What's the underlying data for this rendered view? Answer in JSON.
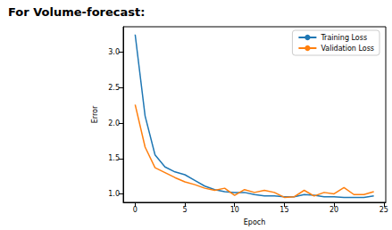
{
  "chart_data": {
    "type": "line",
    "title": "For Volume-forecast:",
    "x_label": "Epoch",
    "y_label": "Error",
    "x": [
      0,
      1,
      2,
      3,
      4,
      5,
      6,
      7,
      8,
      9,
      10,
      11,
      12,
      13,
      14,
      15,
      16,
      17,
      18,
      19,
      20,
      21,
      22,
      23,
      24
    ],
    "series": [
      {
        "name": "Training Loss",
        "color": "#1f77b4",
        "values": [
          3.25,
          2.1,
          1.55,
          1.38,
          1.31,
          1.27,
          1.19,
          1.11,
          1.06,
          1.03,
          1.02,
          1.02,
          0.99,
          0.97,
          0.97,
          0.96,
          0.96,
          0.99,
          0.98,
          0.96,
          0.96,
          0.95,
          0.95,
          0.95,
          0.97
        ]
      },
      {
        "name": "Validation Loss",
        "color": "#ff7f0e",
        "values": [
          2.26,
          1.66,
          1.37,
          1.3,
          1.23,
          1.17,
          1.13,
          1.08,
          1.05,
          1.08,
          0.98,
          1.06,
          1.02,
          1.05,
          1.02,
          0.95,
          0.96,
          1.05,
          0.97,
          1.02,
          1.0,
          1.09,
          0.99,
          0.99,
          1.03
        ]
      }
    ],
    "xlim": [
      -1.2,
      25.2
    ],
    "xticks": [
      0,
      5,
      10,
      15,
      20,
      25
    ],
    "ylim": [
      0.88,
      3.36
    ],
    "yticks": [
      {
        "value": 1,
        "label": "1.0"
      },
      {
        "value": 1.5,
        "label": "1.5"
      },
      {
        "value": 2,
        "label": "2.0"
      },
      {
        "value": 2.5,
        "label": "2.5"
      },
      {
        "value": 3,
        "label": "3.0"
      }
    ],
    "legend": "upper right",
    "grid": false,
    "marker": "none"
  }
}
